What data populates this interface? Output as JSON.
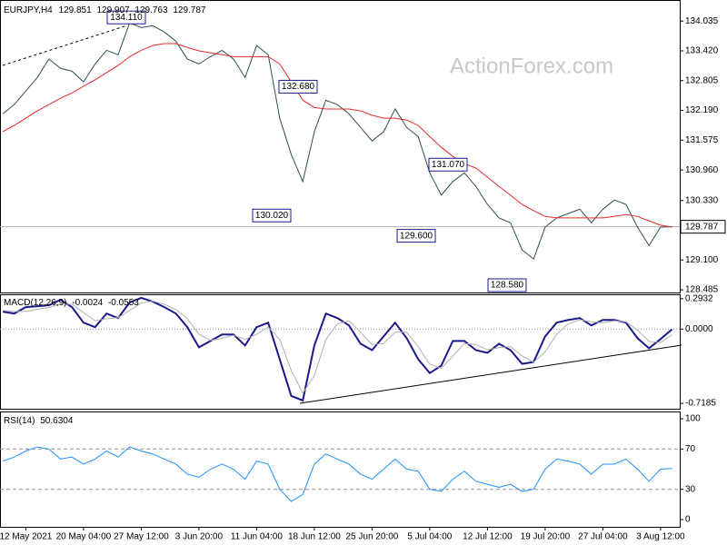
{
  "chart_data": [
    {
      "type": "line",
      "title": "EURJPY,H4",
      "ohlc": [
        129.851,
        129.907,
        129.763,
        129.787
      ],
      "watermark": "ActionForex.com",
      "ylim": [
        128.43,
        134.47
      ],
      "yticks": [
        134.035,
        {
          "value": 133.42,
          "label": "133.420"
        },
        132.805,
        {
          "value": 132.19,
          "label": "132.190"
        },
        131.575,
        {
          "value": 130.96,
          "label": "130.960"
        },
        {
          "value": 130.33,
          "label": "130.330"
        },
        {
          "value": 129.1,
          "label": "129.100"
        },
        128.485
      ],
      "current_price": 129.787,
      "annotations": [
        {
          "value": 134.11,
          "label": "134.110"
        },
        {
          "value": 132.68,
          "label": "132.680"
        },
        {
          "value": 130.02,
          "label": "130.020"
        },
        {
          "value": 131.07,
          "label": "131.070"
        },
        {
          "value": 129.6,
          "label": "129.600"
        },
        {
          "value": 128.58,
          "label": "128.580"
        }
      ],
      "series": [
        {
          "color": "#2f4f4f",
          "values": [
            132.12,
            132.31,
            132.59,
            132.87,
            133.25,
            133.06,
            133.0,
            132.78,
            133.15,
            133.43,
            133.34,
            134.0,
            133.9,
            133.94,
            133.81,
            133.62,
            133.25,
            133.15,
            133.3,
            133.43,
            133.25,
            132.87,
            133.53,
            133.34,
            132.03,
            131.28,
            130.72,
            131.75,
            132.4,
            132.31,
            132.12,
            131.84,
            131.56,
            131.75,
            132.22,
            131.84,
            131.65,
            130.9,
            130.44,
            130.72,
            130.9,
            130.62,
            130.25,
            129.97,
            129.87,
            129.31,
            129.12,
            129.78,
            129.97,
            130.06,
            130.15,
            129.87,
            130.15,
            130.34,
            130.25,
            129.78,
            129.4,
            129.78,
            129.787
          ]
        },
        {
          "color": "#e32b2b",
          "values": [
            131.75,
            131.88,
            132.03,
            132.18,
            132.31,
            132.44,
            132.55,
            132.69,
            132.82,
            132.97,
            133.12,
            133.3,
            133.43,
            133.53,
            133.57,
            133.57,
            133.49,
            133.42,
            133.38,
            133.34,
            133.3,
            133.3,
            133.3,
            133.3,
            133.15,
            132.78,
            132.4,
            132.25,
            132.22,
            132.22,
            132.22,
            132.18,
            132.09,
            132.03,
            132.03,
            131.99,
            131.88,
            131.65,
            131.43,
            131.24,
            131.09,
            131.0,
            130.81,
            130.62,
            130.44,
            130.25,
            130.12,
            130.0,
            129.97,
            129.97,
            129.97,
            129.97,
            129.97,
            130.0,
            130.04,
            130.0,
            129.91,
            129.82,
            129.78
          ]
        }
      ]
    },
    {
      "type": "line",
      "title": "MACD(12,26,9)",
      "last_values": [
        -0.0024,
        -0.0553
      ],
      "ylim": [
        -0.779,
        0.327
      ],
      "yticks": [
        0.2932,
        {
          "value": 0,
          "label": "0.0000"
        },
        -0.7185
      ],
      "levels": [
        0
      ],
      "series": [
        {
          "color": "#1a1a8c",
          "values": [
            0.168,
            0.15,
            0.212,
            0.221,
            0.23,
            0.283,
            0.212,
            0.062,
            0.018,
            0.15,
            0.106,
            0.257,
            0.301,
            0.265,
            0.212,
            0.15,
            0.018,
            -0.177,
            -0.115,
            -0.053,
            -0.053,
            -0.159,
            0.018,
            0.062,
            -0.292,
            -0.646,
            -0.69,
            -0.159,
            0.15,
            0.106,
            0.035,
            -0.142,
            -0.204,
            -0.071,
            0.062,
            -0.088,
            -0.292,
            -0.425,
            -0.354,
            -0.115,
            -0.115,
            -0.204,
            -0.23,
            -0.142,
            -0.204,
            -0.336,
            -0.319,
            -0.071,
            0.062,
            0.088,
            0.106,
            0.035,
            0.088,
            0.088,
            0.062,
            -0.088,
            -0.186,
            -0.097,
            -0.0024
          ]
        },
        {
          "color": "#b0b0b0",
          "values": [
            0.18,
            0.17,
            0.17,
            0.19,
            0.21,
            0.24,
            0.24,
            0.16,
            0.08,
            0.1,
            0.11,
            0.18,
            0.25,
            0.27,
            0.24,
            0.19,
            0.1,
            -0.05,
            -0.11,
            -0.09,
            -0.06,
            -0.1,
            -0.05,
            0.02,
            -0.1,
            -0.4,
            -0.62,
            -0.45,
            -0.1,
            0.05,
            0.08,
            -0.03,
            -0.15,
            -0.14,
            -0.03,
            -0.03,
            -0.17,
            -0.34,
            -0.38,
            -0.26,
            -0.14,
            -0.15,
            -0.2,
            -0.18,
            -0.17,
            -0.26,
            -0.32,
            -0.22,
            -0.05,
            0.05,
            0.09,
            0.07,
            0.06,
            0.08,
            0.07,
            -0.01,
            -0.12,
            -0.13,
            -0.0553
          ]
        }
      ]
    },
    {
      "type": "line",
      "title": "RSI(14)",
      "last_values": [
        50.6304
      ],
      "ylim": [
        -7.2,
        105.4
      ],
      "yticks": [
        100,
        70,
        30,
        0
      ],
      "levels": [
        70,
        30
      ],
      "categories": [
        null,
        null,
        "12 May 2021",
        null,
        null,
        null,
        null,
        "20 May 04:00",
        null,
        null,
        null,
        null,
        "27 May 12:00",
        null,
        null,
        null,
        null,
        "3 Jun 20:00",
        null,
        null,
        null,
        null,
        "11 Jun 04:00",
        null,
        null,
        null,
        null,
        "18 Jun 12:00",
        null,
        null,
        null,
        null,
        "25 Jun 20:00",
        null,
        null,
        null,
        null,
        "5 Jul 04:00",
        null,
        null,
        null,
        null,
        "12 Jul 12:00",
        null,
        null,
        null,
        null,
        "19 Jul 20:00",
        null,
        null,
        null,
        null,
        "27 Jul 04:00",
        null,
        null,
        null,
        null,
        "3 Aug 12:00",
        null
      ],
      "series": [
        {
          "color": "#1e90ff",
          "values": [
            58,
            62,
            68,
            72,
            70,
            60,
            62,
            55,
            60,
            68,
            62,
            72,
            68,
            65,
            60,
            55,
            45,
            42,
            50,
            55,
            50,
            40,
            58,
            55,
            30,
            18,
            25,
            55,
            65,
            60,
            55,
            45,
            40,
            50,
            60,
            50,
            48,
            30,
            28,
            40,
            48,
            38,
            35,
            32,
            35,
            28,
            30,
            50,
            60,
            58,
            55,
            45,
            55,
            55,
            60,
            50,
            38,
            50,
            50.63
          ]
        }
      ]
    }
  ]
}
